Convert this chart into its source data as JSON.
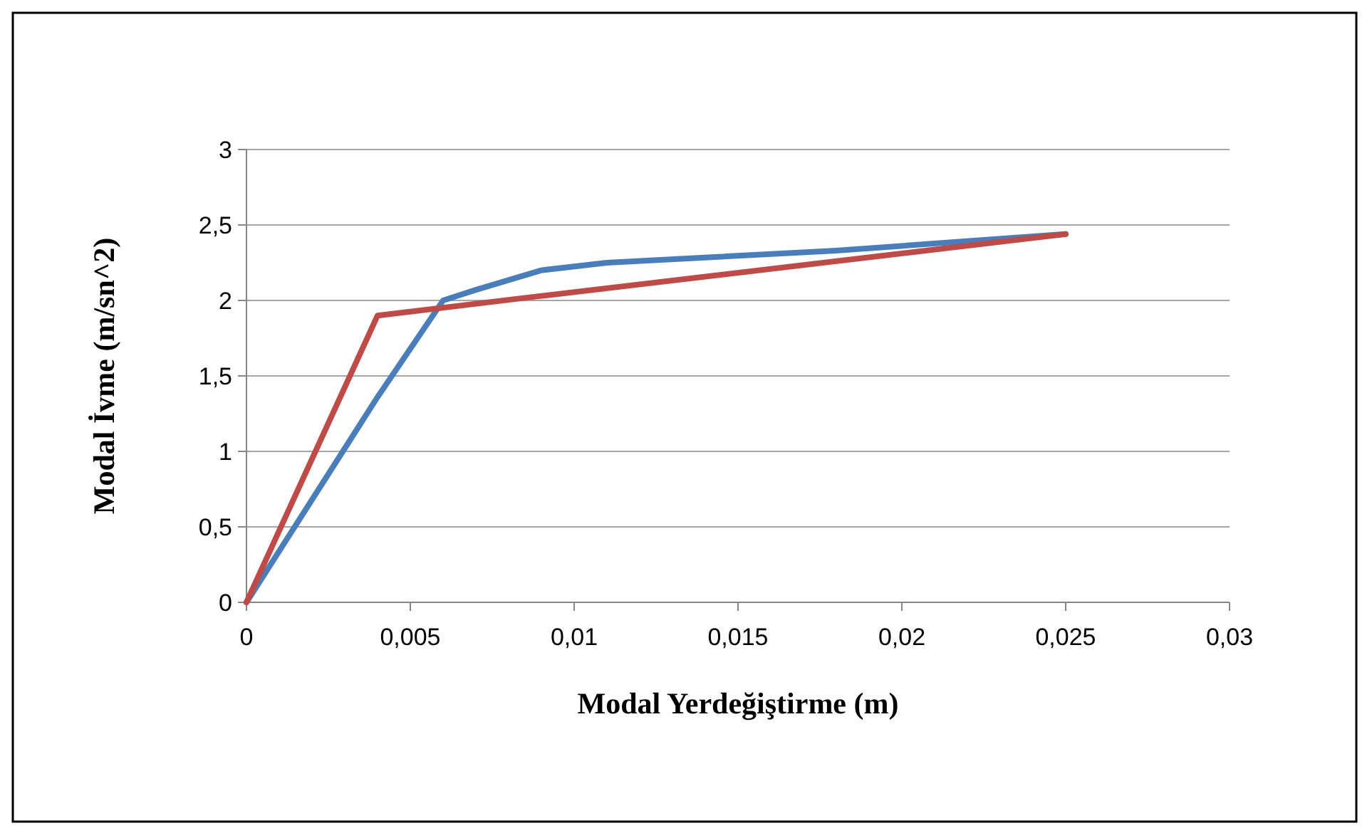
{
  "chart_data": {
    "type": "line",
    "xlabel": "Modal Yerdeğiştirme (m)",
    "ylabel": "Modal İvme (m/sn^2)",
    "xlim": [
      0,
      0.03
    ],
    "xticks": [
      {
        "value": 0,
        "label": "0"
      },
      {
        "value": 0.005,
        "label": "0,005"
      },
      {
        "value": 0.01,
        "label": "0,01"
      },
      {
        "value": 0.015,
        "label": "0,015"
      },
      {
        "value": 0.02,
        "label": "0,02"
      },
      {
        "value": 0.025,
        "label": "0,025"
      },
      {
        "value": 0.03,
        "label": "0,03"
      }
    ],
    "ylim": [
      0,
      3
    ],
    "yticks": [
      {
        "value": 0,
        "label": "0"
      },
      {
        "value": 0.5,
        "label": "0,5"
      },
      {
        "value": 1,
        "label": "1"
      },
      {
        "value": 1.5,
        "label": "1,5"
      },
      {
        "value": 2,
        "label": "2"
      },
      {
        "value": 2.5,
        "label": "2,5"
      },
      {
        "value": 3,
        "label": "3"
      }
    ],
    "grid": "y",
    "series": [
      {
        "color": "#4a7ebb",
        "x": [
          0,
          0.004,
          0.006,
          0.007,
          0.009,
          0.011,
          0.018,
          0.025
        ],
        "values": [
          0,
          1.36,
          2.0,
          2.07,
          2.2,
          2.25,
          2.33,
          2.44
        ]
      },
      {
        "color": "#be4b48",
        "x": [
          0,
          0.004,
          0.009,
          0.025
        ],
        "values": [
          0,
          1.9,
          2.03,
          2.44
        ]
      }
    ]
  }
}
